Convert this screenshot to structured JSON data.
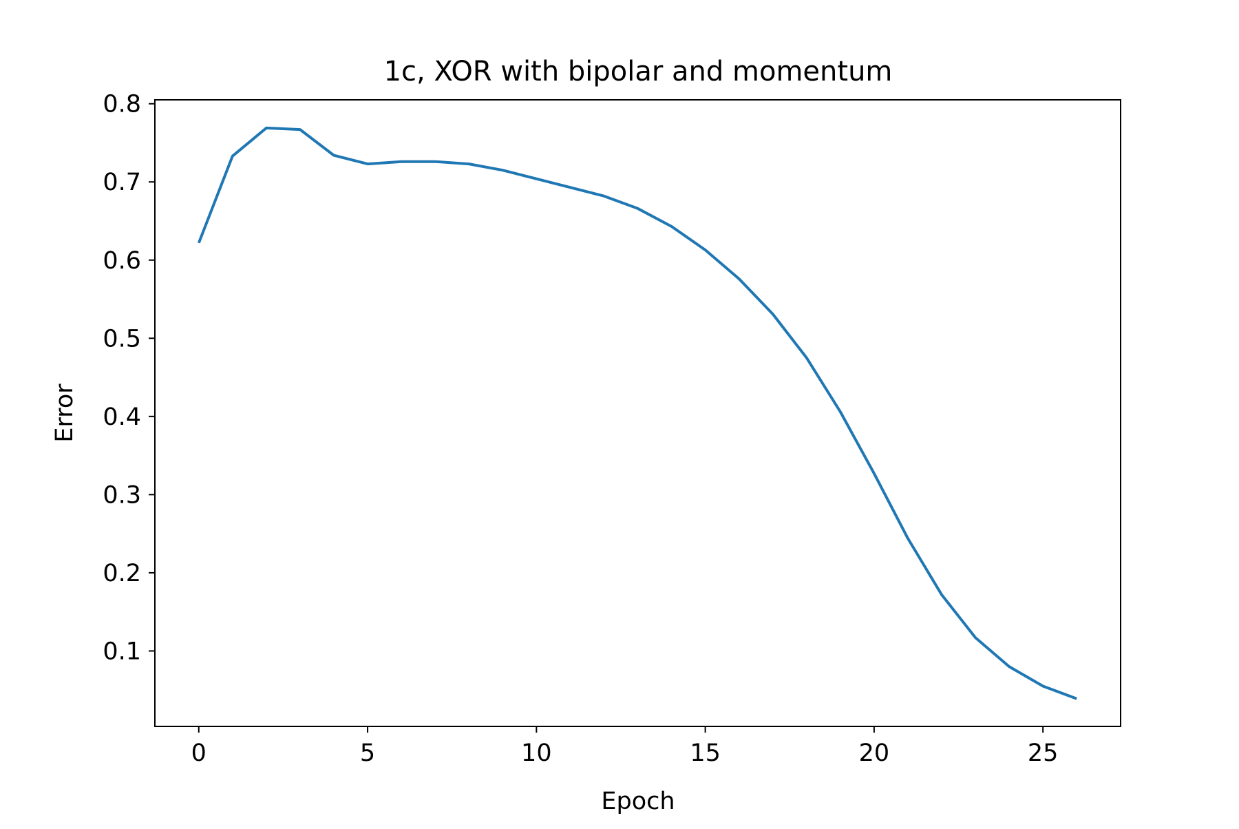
{
  "chart_data": {
    "type": "line",
    "title": "1c, XOR with bipolar and momentum",
    "xlabel": "Epoch",
    "ylabel": "Error",
    "xlim": [
      -1.3,
      27.3
    ],
    "ylim": [
      0.0035,
      0.805
    ],
    "grid": false,
    "legend": "none",
    "x_ticks": [
      0,
      5,
      10,
      15,
      20,
      25
    ],
    "x_tick_labels": [
      "0",
      "5",
      "10",
      "15",
      "20",
      "25"
    ],
    "y_ticks": [
      0.1,
      0.2,
      0.3,
      0.4,
      0.5,
      0.6,
      0.7,
      0.8
    ],
    "y_tick_labels": [
      "0.1",
      "0.2",
      "0.3",
      "0.4",
      "0.5",
      "0.6",
      "0.7",
      "0.8"
    ],
    "series": [
      {
        "color": "#1f77b4",
        "x": [
          0,
          1,
          2,
          3,
          4,
          5,
          6,
          7,
          8,
          9,
          10,
          11,
          12,
          13,
          14,
          15,
          16,
          17,
          18,
          19,
          20,
          21,
          22,
          23,
          24,
          25,
          26
        ],
        "y": [
          0.622,
          0.733,
          0.769,
          0.767,
          0.734,
          0.723,
          0.726,
          0.726,
          0.723,
          0.715,
          0.704,
          0.693,
          0.682,
          0.666,
          0.643,
          0.613,
          0.576,
          0.531,
          0.475,
          0.406,
          0.327,
          0.244,
          0.172,
          0.117,
          0.08,
          0.055,
          0.039
        ]
      }
    ]
  }
}
